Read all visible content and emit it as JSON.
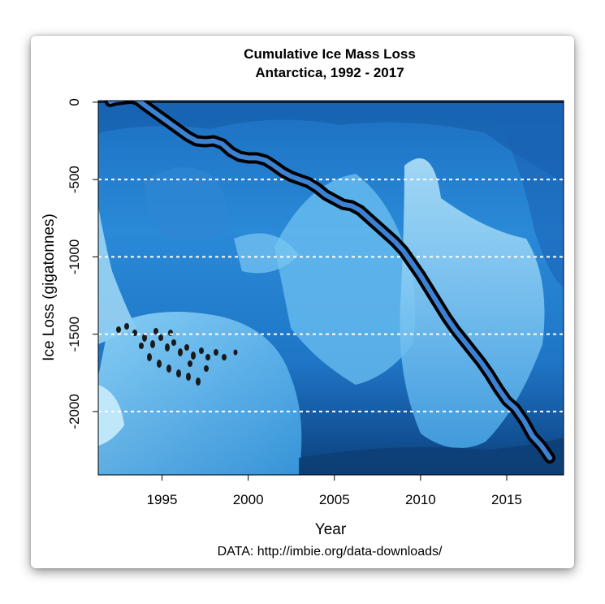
{
  "chart_data": {
    "type": "line",
    "title": "Cumulative Ice Mass Loss",
    "subtitle": "Antarctica, 1992 - 2017",
    "xlabel": "Year",
    "ylabel": "Ice Loss (gigatonnes)",
    "source": "DATA: http://imbie.org/data-downloads/",
    "xlim": [
      1991.3,
      2018.3
    ],
    "ylim": [
      -2410,
      10
    ],
    "x_ticks": [
      1995,
      2000,
      2005,
      2010,
      2015
    ],
    "x_tick_labels": [
      "1995",
      "2000",
      "2005",
      "2010",
      "2015"
    ],
    "y_ticks": [
      0,
      -500,
      -1000,
      -1500,
      -2000
    ],
    "y_tick_labels": [
      "0",
      "-500",
      "-1000",
      "-1500",
      "-2000"
    ],
    "gridlines": [
      -500,
      -1000,
      -1500,
      -2000
    ],
    "grid_style": "white dashed horizontal",
    "background": "photo of Antarctic blue ice with penguins",
    "line_colors": {
      "outline": "#000000",
      "fill": "#3b82d4"
    },
    "series": [
      {
        "x": [
          1992.0,
          1992.3,
          1992.7,
          1993.0,
          1993.3,
          1993.6,
          1994.0,
          1994.5,
          1995.0,
          1995.5,
          1996.0,
          1996.5,
          1997.0,
          1997.5,
          1998.0,
          1998.5,
          1999.0,
          1999.5,
          2000.0,
          2000.5,
          2001.0,
          2001.5,
          2002.0,
          2002.5,
          2003.0,
          2003.5,
          2004.0,
          2004.5,
          2005.0,
          2005.5,
          2006.0,
          2006.5,
          2007.0,
          2007.5,
          2008.0,
          2008.5,
          2009.0,
          2009.5,
          2010.0,
          2010.5,
          2011.0,
          2011.5,
          2012.0,
          2012.5,
          2013.0,
          2013.5,
          2014.0,
          2014.5,
          2015.0,
          2015.5,
          2016.0,
          2016.5,
          2017.0,
          2017.5
        ],
        "values": [
          5,
          15,
          20,
          25,
          25,
          15,
          -20,
          -60,
          -100,
          -140,
          -180,
          -220,
          -250,
          -255,
          -250,
          -270,
          -320,
          -350,
          -360,
          -360,
          -375,
          -410,
          -450,
          -480,
          -500,
          -520,
          -555,
          -600,
          -630,
          -660,
          -670,
          -700,
          -750,
          -800,
          -850,
          -900,
          -960,
          -1040,
          -1120,
          -1210,
          -1300,
          -1390,
          -1470,
          -1540,
          -1610,
          -1680,
          -1760,
          -1850,
          -1930,
          -1980,
          -2060,
          -2160,
          -2220,
          -2300
        ]
      }
    ]
  }
}
